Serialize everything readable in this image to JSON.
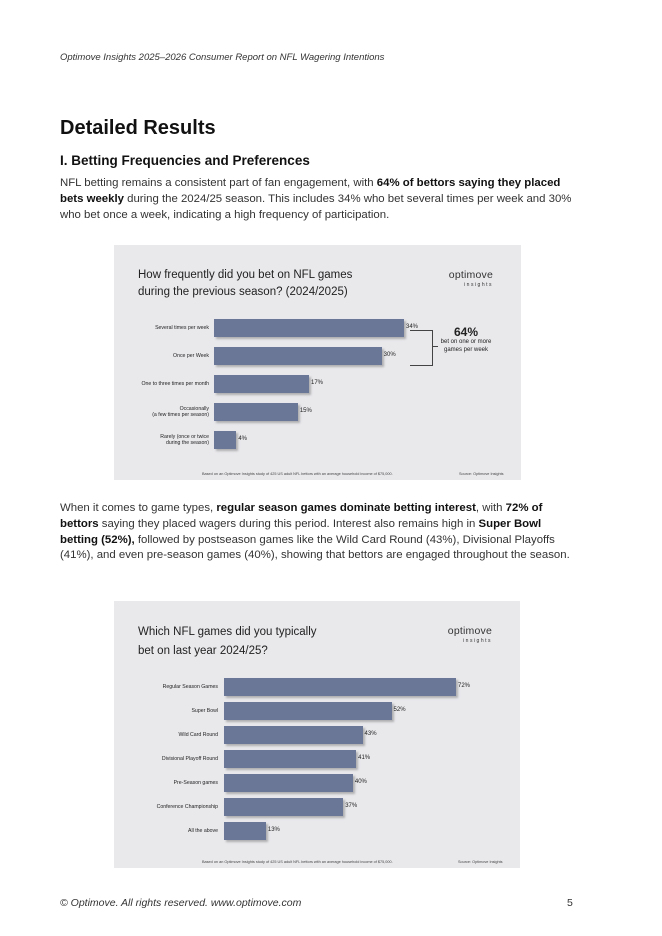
{
  "header": {
    "report_title": "Optimove Insights 2025–2026 Consumer Report on NFL Wagering Intentions"
  },
  "section": {
    "title": "Detailed Results",
    "subtitle": "I. Betting Frequencies and Preferences"
  },
  "para1": {
    "t1": "NFL betting remains a consistent part of fan engagement, with ",
    "b1": "64% of bettors saying they placed bets weekly",
    "t2": " during the 2024/25 season. This includes 34% who bet several times per week and 30% who bet once a week, indicating a high frequency of participation."
  },
  "para2": {
    "t1": "When it comes to game types, ",
    "b1": "regular season games dominate betting interest",
    "t2": ", with ",
    "b2": "72% of bettors",
    "t3": " saying they placed wagers during this period. Interest also remains high in ",
    "b3": "Super Bowl betting (52%),",
    "t4": " followed by postseason games like the Wild Card Round (43%), Divisional Playoffs (41%), and even pre-season games (40%), showing that bettors are engaged throughout the season."
  },
  "logo": {
    "main": "optimove",
    "sub": "insights"
  },
  "chart_data": [
    {
      "type": "bar",
      "orientation": "horizontal",
      "title_line1": "How frequently did you bet on NFL games",
      "title_line2": "during the previous season? (2024/2025)",
      "categories": [
        "Several times per week",
        "Once per Week",
        "One to three times per month",
        "Occasionally (a few times per season)",
        "Rarely (once or twice during the season)"
      ],
      "category_lines": [
        [
          "Several times per week"
        ],
        [
          "Once per Week"
        ],
        [
          "One to three times per month"
        ],
        [
          "Occasionally",
          "(a few times per season)"
        ],
        [
          "Rarely (once or twice",
          "during the season)"
        ]
      ],
      "values": [
        34,
        30,
        17,
        15,
        4
      ],
      "value_labels": [
        "34%",
        "30%",
        "17%",
        "15%",
        "4%"
      ],
      "xlim": [
        0,
        40
      ],
      "bar_color": "#6b7796",
      "callout": {
        "value": "64%",
        "text": "bet on one or more games per week"
      },
      "footnote": "Based on an Optimove Insights study of 425 US adult NFL bettors with an average household income of $75,000.",
      "source": "Source: Optimove Insights"
    },
    {
      "type": "bar",
      "orientation": "horizontal",
      "title_line1": "Which NFL games did you typically",
      "title_line2": "bet on last year 2024/25?",
      "categories": [
        "Regular Season Games",
        "Super Bowl",
        "Wild Card Round",
        "Divisional Playoff Round",
        "Pre-Season games",
        "Conference Championship",
        "All the above"
      ],
      "category_lines": [
        [
          "Regular Season Games"
        ],
        [
          "Super Bowl"
        ],
        [
          "Wild Card Round"
        ],
        [
          "Divisional Playoff Round"
        ],
        [
          "Pre-Season games"
        ],
        [
          "Conference Championship"
        ],
        [
          "All the above"
        ]
      ],
      "values": [
        72,
        52,
        43,
        41,
        40,
        37,
        13
      ],
      "value_labels": [
        "72%",
        "52%",
        "43%",
        "41%",
        "40%",
        "37%",
        "13%"
      ],
      "xlim": [
        0,
        75
      ],
      "bar_color": "#6b7796",
      "footnote": "Based on an Optimove Insights study of 425 US adult NFL bettors with an average household income of $75,000.",
      "source": "Source: Optimove Insights"
    }
  ],
  "footer": {
    "copyright": "© Optimove. All rights reserved. www.optimove.com",
    "page_number": "5"
  }
}
